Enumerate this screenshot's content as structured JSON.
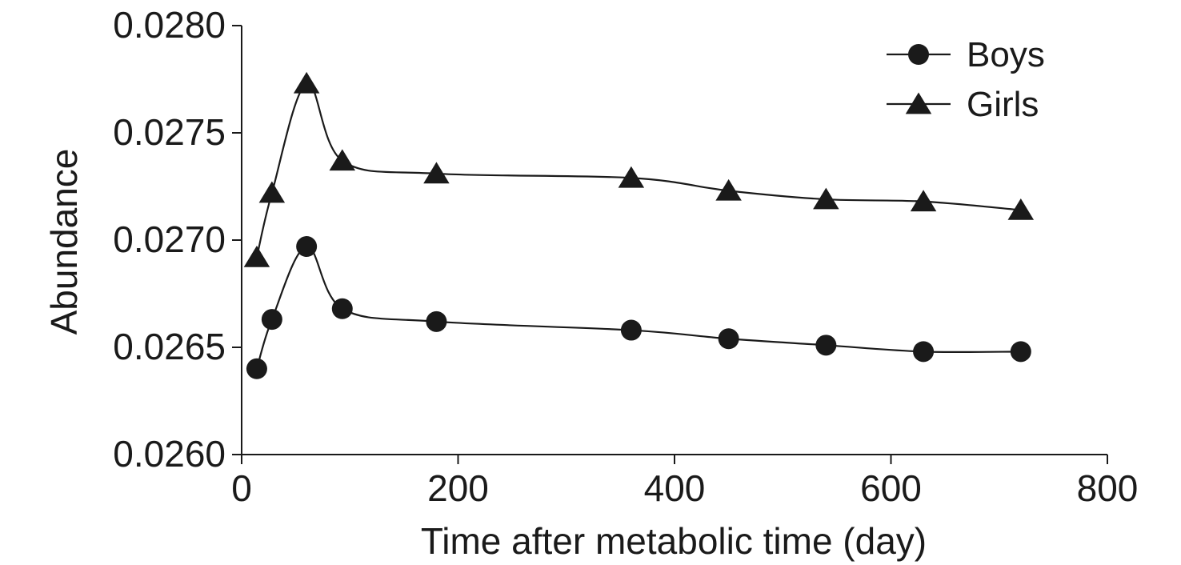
{
  "chart_data": {
    "type": "line",
    "xlabel": "Time after metabolic time (day)",
    "ylabel": "Abundance",
    "xlim": [
      0,
      800
    ],
    "ylim": [
      0.026,
      0.028
    ],
    "x_ticks": [
      0,
      200,
      400,
      600,
      800
    ],
    "y_ticks": [
      0.026,
      0.0265,
      0.027,
      0.0275,
      0.028
    ],
    "x_tick_labels": [
      "0",
      "200",
      "400",
      "600",
      "800"
    ],
    "y_tick_labels": [
      "0.0260",
      "0.0265",
      "0.0270",
      "0.0275",
      "0.0280"
    ],
    "legend_position": "top-right",
    "grid": false,
    "series": [
      {
        "name": "Boys",
        "marker": "circle",
        "color": "#1a1a1a",
        "points": [
          {
            "x": 14,
            "y": 0.0264
          },
          {
            "x": 28,
            "y": 0.02663
          },
          {
            "x": 60,
            "y": 0.02697
          },
          {
            "x": 93,
            "y": 0.02668
          },
          {
            "x": 180,
            "y": 0.02662
          },
          {
            "x": 360,
            "y": 0.02658
          },
          {
            "x": 450,
            "y": 0.02654
          },
          {
            "x": 540,
            "y": 0.02651
          },
          {
            "x": 630,
            "y": 0.02648
          },
          {
            "x": 720,
            "y": 0.02648
          }
        ]
      },
      {
        "name": "Girls",
        "marker": "triangle",
        "color": "#1a1a1a",
        "points": [
          {
            "x": 14,
            "y": 0.02692
          },
          {
            "x": 28,
            "y": 0.02722
          },
          {
            "x": 60,
            "y": 0.02773
          },
          {
            "x": 93,
            "y": 0.02737
          },
          {
            "x": 180,
            "y": 0.02731
          },
          {
            "x": 360,
            "y": 0.02729
          },
          {
            "x": 450,
            "y": 0.02723
          },
          {
            "x": 540,
            "y": 0.02719
          },
          {
            "x": 630,
            "y": 0.02718
          },
          {
            "x": 720,
            "y": 0.02714
          }
        ]
      }
    ]
  }
}
